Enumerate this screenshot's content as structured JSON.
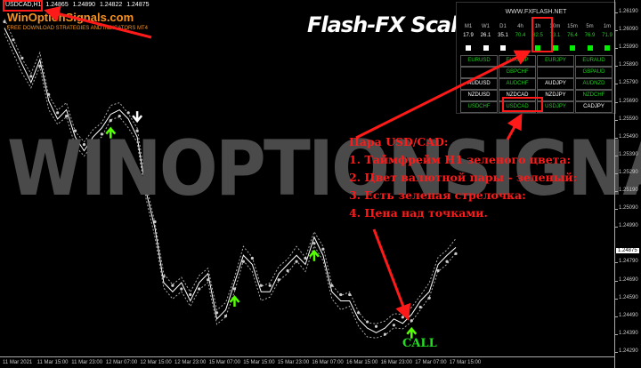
{
  "header": {
    "symbol": "USDCAD,H1",
    "ohlc": [
      "1.24865",
      "1.24890",
      "1.24822",
      "1.24875"
    ]
  },
  "brand": {
    "name": "WinOptionSignals.com",
    "tagline": "FREE DOWNLOAD STRATEGIES AND INDICATORS MT4"
  },
  "title": "Flash-FX Scalper",
  "watermark": "WINOPTIONSIGNALS.COM",
  "panel": {
    "site": "WWW.FXFLASH.NET",
    "timeframes": [
      {
        "label": "M1",
        "value": "17.9",
        "color": "#ffffff",
        "square": "#ffffff"
      },
      {
        "label": "W1",
        "value": "26.1",
        "color": "#ffffff",
        "square": "#ffffff"
      },
      {
        "label": "D1",
        "value": "35.1",
        "color": "#ffffff",
        "square": "#ffffff"
      },
      {
        "label": "4h",
        "value": "70.4",
        "color": "#22cc22",
        "square": ""
      },
      {
        "label": "1h",
        "value": "82.5",
        "color": "#22cc22",
        "square": "#00ee00"
      },
      {
        "label": "30m",
        "value": "73.1",
        "color": "#22cc22",
        "square": "#00ee00"
      },
      {
        "label": "15m",
        "value": "76.4",
        "color": "#22cc22",
        "square": "#00ee00"
      },
      {
        "label": "5m",
        "value": "76.9",
        "color": "#22cc22",
        "square": "#00ee00"
      },
      {
        "label": "1m",
        "value": "71.9",
        "color": "#22cc22",
        "square": "#00ee00"
      }
    ],
    "pairs": [
      [
        {
          "n": "EURUSD",
          "c": "#22cc22"
        },
        {
          "n": "EURGBP",
          "c": "#22cc22"
        },
        {
          "n": "EURJPY",
          "c": "#22cc22"
        },
        {
          "n": "EURAUD",
          "c": "#22cc22"
        }
      ],
      [
        {
          "n": "",
          "c": "#fff"
        },
        {
          "n": "GBPCHF",
          "c": "#22cc22"
        },
        {
          "n": "",
          "c": "#fff"
        },
        {
          "n": "GBPAUD",
          "c": "#22cc22"
        }
      ],
      [
        {
          "n": "AUDUSD",
          "c": "#ffffff"
        },
        {
          "n": "AUDCHF",
          "c": "#22cc22"
        },
        {
          "n": "AUDJPY",
          "c": "#ffffff"
        },
        {
          "n": "AUDNZD",
          "c": "#22cc22"
        }
      ],
      [
        {
          "n": "NZDUSD",
          "c": "#ffffff"
        },
        {
          "n": "NZDCAD",
          "c": "#ffffff"
        },
        {
          "n": "NZDJPY",
          "c": "#ffffff"
        },
        {
          "n": "NZDCHF",
          "c": "#22cc22"
        }
      ],
      [
        {
          "n": "USDCHF",
          "c": "#22cc22"
        },
        {
          "n": "USDCAD",
          "c": "#22cc22"
        },
        {
          "n": "USDJPY",
          "c": "#22cc22"
        },
        {
          "n": "CADJPY",
          "c": "#ffffff"
        }
      ]
    ]
  },
  "annotation": {
    "lines": [
      "Пара USD/CAD:",
      "1. Таймфрейм H1 зеленого цвета:",
      "2. Цвет валютной пары - зеленый:",
      "3. Есть зеленая стрелочка:",
      "4. Цена над точками."
    ],
    "call": "CALL",
    "accent": "#ff1a1a"
  },
  "chart_data": {
    "type": "line",
    "price_ticks": [
      "1.26190",
      "1.26090",
      "1.25990",
      "1.25890",
      "1.25790",
      "1.25690",
      "1.25590",
      "1.25490",
      "1.25390",
      "1.25290",
      "1.25190",
      "1.25090",
      "1.24990",
      "1.24790",
      "1.24690",
      "1.24590",
      "1.24490",
      "1.24390",
      "1.24290"
    ],
    "current_price": "1.24875",
    "time_ticks": [
      "11 Mar 2021",
      "11 Mar 15:00",
      "11 Mar 23:00",
      "12 Mar 07:00",
      "12 Mar 15:00",
      "12 Mar 23:00",
      "15 Mar 07:00",
      "15 Mar 15:00",
      "15 Mar 23:00",
      "16 Mar 07:00",
      "16 Mar 15:00",
      "16 Mar 23:00",
      "17 Mar 07:00",
      "17 Mar 15:00"
    ],
    "ylim": [
      1.2429,
      1.2619
    ],
    "close": [
      1.26103,
      1.26002,
      1.259,
      1.25798,
      1.25925,
      1.25696,
      1.25594,
      1.25645,
      1.25493,
      1.25416,
      1.25493,
      1.25544,
      1.2562,
      1.25645,
      1.25594,
      1.25493,
      1.25187,
      1.24984,
      1.24678,
      1.24627,
      1.24678,
      1.24576,
      1.24678,
      1.24729,
      1.24475,
      1.24526,
      1.24678,
      1.24831,
      1.2478,
      1.24627,
      1.24627,
      1.24729,
      1.2478,
      1.24831,
      1.2478,
      1.24933,
      1.24831,
      1.24627,
      1.24576,
      1.24576,
      1.24475,
      1.24424,
      1.24398,
      1.24424,
      1.24475,
      1.2445,
      1.245,
      1.24576,
      1.24627,
      1.2478,
      1.24831,
      1.24875
    ],
    "signals": [
      {
        "type": "buy",
        "bar": 12,
        "color": "#55ff00"
      },
      {
        "type": "sell",
        "bar": 15,
        "color": "#ffffff"
      },
      {
        "type": "buy",
        "bar": 26,
        "color": "#55ff00"
      },
      {
        "type": "buy",
        "bar": 35,
        "color": "#55ff00"
      },
      {
        "type": "buy",
        "bar": 46,
        "color": "#55ff00"
      }
    ]
  }
}
